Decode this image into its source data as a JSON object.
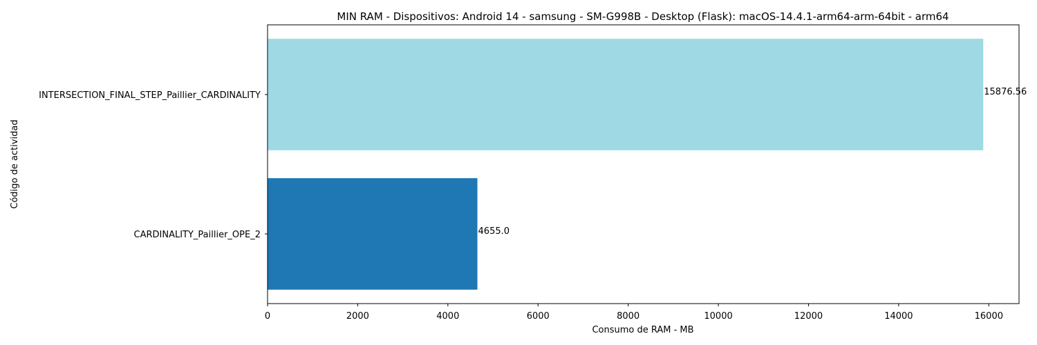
{
  "chart_data": {
    "type": "bar",
    "orientation": "horizontal",
    "title": "MIN RAM - Dispositivos: Android 14 - samsung - SM-G998B - Desktop (Flask): macOS-14.4.1-arm64-arm-64bit - arm64",
    "xlabel": "Consumo de RAM - MB",
    "ylabel": "Código de actividad",
    "categories": [
      "INTERSECTION_FINAL_STEP_Paillier_CARDINALITY",
      "CARDINALITY_Paillier_OPE_2"
    ],
    "values": [
      15876.56,
      4655.0
    ],
    "value_labels": [
      "15876.56",
      "4655.0"
    ],
    "colors": [
      "#9fdae4",
      "#1f77b4"
    ],
    "xlim": [
      0,
      16670
    ],
    "xticks": [
      0,
      2000,
      4000,
      6000,
      8000,
      10000,
      12000,
      14000,
      16000
    ],
    "grid": false
  }
}
